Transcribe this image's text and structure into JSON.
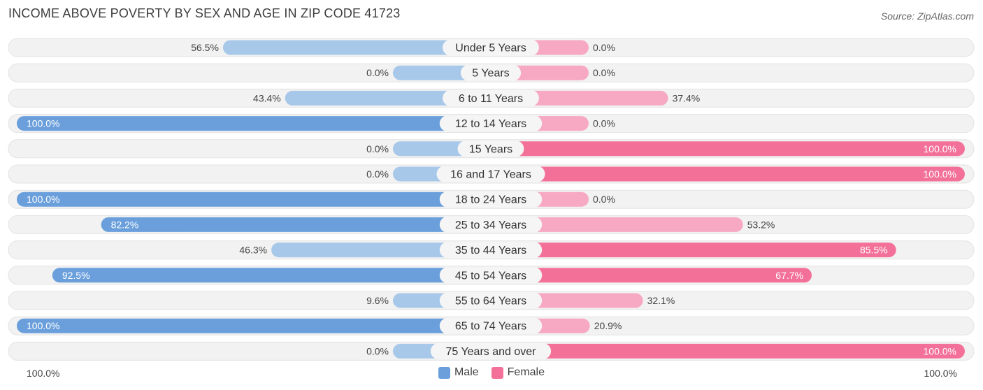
{
  "header": {
    "title": "INCOME ABOVE POVERTY BY SEX AND AGE IN ZIP CODE 41723",
    "source": "Source: ZipAtlas.com"
  },
  "colors": {
    "male_strong": "#6a9fdc",
    "male_light": "#a8c8ea",
    "female_strong": "#f37199",
    "female_light": "#f7a8c2",
    "track": "#f2f2f2"
  },
  "axis": {
    "left_label": "100.0%",
    "right_label": "100.0%"
  },
  "legend": {
    "male": "Male",
    "female": "Female"
  },
  "chart_data": {
    "type": "bar",
    "orientation": "horizontal-diverging",
    "title": "INCOME ABOVE POVERTY BY SEX AND AGE IN ZIP CODE 41723",
    "xlim": [
      -100,
      100
    ],
    "categories": [
      "Under 5 Years",
      "5 Years",
      "6 to 11 Years",
      "12 to 14 Years",
      "15 Years",
      "16 and 17 Years",
      "18 to 24 Years",
      "25 to 34 Years",
      "35 to 44 Years",
      "45 to 54 Years",
      "55 to 64 Years",
      "65 to 74 Years",
      "75 Years and over"
    ],
    "series": [
      {
        "name": "Male",
        "values": [
          56.5,
          0.0,
          43.4,
          100.0,
          0.0,
          0.0,
          100.0,
          82.2,
          46.3,
          92.5,
          9.6,
          100.0,
          0.0
        ],
        "labels": [
          "56.5%",
          "0.0%",
          "43.4%",
          "100.0%",
          "0.0%",
          "0.0%",
          "100.0%",
          "82.2%",
          "46.3%",
          "92.5%",
          "9.6%",
          "100.0%",
          "0.0%"
        ]
      },
      {
        "name": "Female",
        "values": [
          0.0,
          0.0,
          37.4,
          0.0,
          100.0,
          100.0,
          0.0,
          53.2,
          85.5,
          67.7,
          32.1,
          20.9,
          100.0
        ],
        "labels": [
          "0.0%",
          "0.0%",
          "37.4%",
          "0.0%",
          "100.0%",
          "100.0%",
          "0.0%",
          "53.2%",
          "85.5%",
          "67.7%",
          "32.1%",
          "20.9%",
          "100.0%"
        ]
      }
    ],
    "legend_position": "bottom-center"
  }
}
